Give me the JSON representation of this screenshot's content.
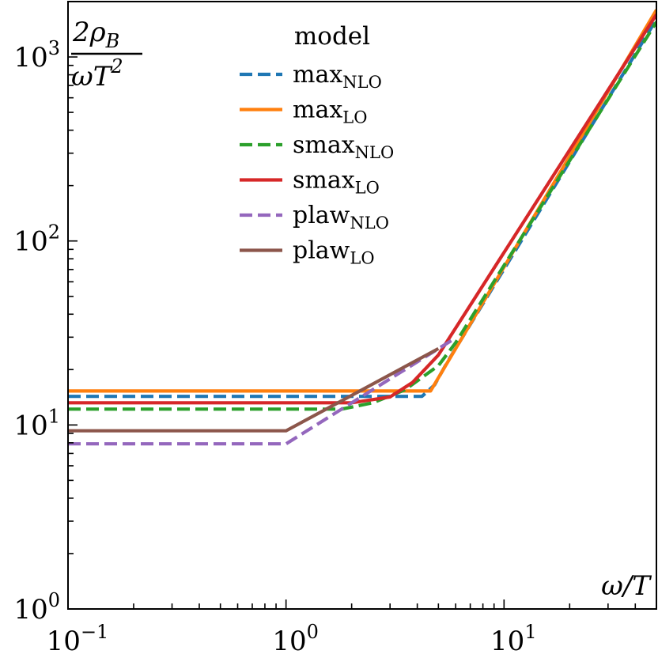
{
  "chart_data": {
    "type": "line",
    "xscale": "log",
    "yscale": "log",
    "xlim": [
      0.1,
      50
    ],
    "ylim": [
      1,
      2000
    ],
    "xlabel": "ω/T",
    "ylabel": {
      "numerator": "2ρ_B",
      "denominator": "ωT^2"
    },
    "x_ticks": [
      {
        "value": 0.1,
        "base": "10",
        "exp": "−1"
      },
      {
        "value": 1,
        "base": "10",
        "exp": "0"
      },
      {
        "value": 10,
        "base": "10",
        "exp": "1"
      }
    ],
    "y_ticks": [
      {
        "value": 1,
        "base": "10",
        "exp": "0"
      },
      {
        "value": 10,
        "base": "10",
        "exp": "1"
      },
      {
        "value": 100,
        "base": "10",
        "exp": "2"
      },
      {
        "value": 1000,
        "base": "10",
        "exp": "3"
      }
    ],
    "legend": {
      "title": "model",
      "location": "top-center"
    },
    "series": [
      {
        "name": "max",
        "sub": "NLO",
        "color": "#1f77b4",
        "dash": "dashed",
        "x": [
          0.1,
          4.2,
          4.8,
          5.5,
          50
        ],
        "y": [
          14.3,
          14.3,
          16.5,
          22,
          1600
        ]
      },
      {
        "name": "max",
        "sub": "LO",
        "color": "#ff7f0e",
        "dash": "solid",
        "x": [
          0.1,
          4.6,
          50
        ],
        "y": [
          15.3,
          15.3,
          1800
        ]
      },
      {
        "name": "smax",
        "sub": "NLO",
        "color": "#2ca02c",
        "dash": "dashed",
        "x": [
          0.1,
          1.8,
          2.5,
          3.5,
          5.0,
          6.0,
          50
        ],
        "y": [
          12.2,
          12.2,
          13.2,
          15.5,
          21,
          28,
          1550
        ]
      },
      {
        "name": "smax",
        "sub": "LO",
        "color": "#d62728",
        "dash": "solid",
        "x": [
          0.1,
          2.0,
          3.0,
          3.8,
          5.0,
          50
        ],
        "y": [
          13.2,
          13.2,
          14.2,
          17,
          24,
          1700
        ]
      },
      {
        "name": "plaw",
        "sub": "NLO",
        "color": "#9467bd",
        "dash": "dashed",
        "x": [
          0.1,
          1.0,
          5.8
        ],
        "y": [
          7.9,
          7.9,
          29
        ]
      },
      {
        "name": "plaw",
        "sub": "LO",
        "color": "#8c564b",
        "dash": "solid",
        "x": [
          0.1,
          1.0,
          5.0
        ],
        "y": [
          9.3,
          9.3,
          26
        ]
      }
    ]
  }
}
